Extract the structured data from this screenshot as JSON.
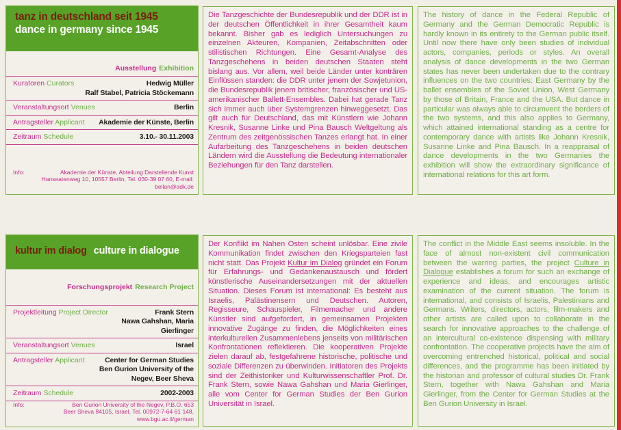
{
  "colors": {
    "background": "#f1eee6",
    "band_green": "#57a227",
    "text_green": "#6fae49",
    "text_magenta": "#c52b8c",
    "title_maroon": "#7b1d0c",
    "title_white": "#ffffff",
    "rule_magenta": "#c13b8e",
    "rule_green": "#7fb24a",
    "page_edge_red": "#d4332b"
  },
  "sections": [
    {
      "title_de": "tanz in deutschland seit 1945",
      "title_en": "dance in germany since 1945",
      "category_de": "Ausstellung",
      "category_en": "Exhibition",
      "meta": [
        {
          "label_de": "Kuratoren",
          "label_en": "Curators",
          "value_lines": [
            "Hedwig Müller",
            "Ralf Stabel, Patricia Stöckemann"
          ]
        },
        {
          "label_de": "Veranstaltungsort",
          "label_en": "Venues",
          "value_lines": [
            "Berlin"
          ]
        },
        {
          "label_de": "Antragsteller",
          "label_en": "Applicant",
          "value_lines": [
            "Akademie der Künste, Berlin"
          ]
        },
        {
          "label_de": "Zeitraum",
          "label_en": "Schedule",
          "value_lines": [
            "3.10.- 30.11.2003"
          ]
        }
      ],
      "info_label": "Info:",
      "info_line1": "Akademie der Künste, Abteilung Darstellende Kunst",
      "info_line2": "Hanseatenweg 10, 10557 Berlin, Tel. 030-39 07 60, E-mail: bellan@adk.de",
      "body_de_pre": "Die Tanzgeschichte der Bundesrepublik und der DDR ist in der deutschen Öffentlichkeit in ihrer Gesamtheit kaum bekannt. Bisher gab es lediglich Untersuchungen zu einzelnen Akteuren, Kompanien, Zeitabschnitten oder stilistischen Richtungen. Eine Gesamt-Analyse des Tanzgeschehens in beiden deutschen Staaten steht bislang aus. Vor allem, weil beide Länder unter konträren Einflüssen standen: die DDR unter jenem der Sowjetunion, die Bundesrepublik jenem britischer, französischer und US-amerikanischer Ballett-Ensembles. Dabei hat gerade Tanz sich immer auch über Systemgrenzen hinweggesetzt. Das gilt auch für Deutschland, das mit Künstlern wie Johann Kresnik, Susanne Linke und Pina Bausch Weltgeltung als Zentrum des zeitgenössischen Tanzes erlangt hat. In einer Aufarbeitung des Tanzgeschehens in beiden deutschen Ländern wird die Ausstellung die Bedeutung internationaler Beziehungen für den Tanz darstellen.",
      "body_en_pre": "The history of dance in the Federal Republic of Germany and the German Democratic Republic is hardly known in its entirety to the German public itself. Until now there have only been studies of individual actors, companies, periods or styles. An overall analysis of dance developments in the two German states has never been undertaken due to the contrary influences on the two countries: East Germany by the ballet ensembles of the Soviet Union, West Germany by those of Britain, France and the USA. But dance in particular was always able to circumvent the borders of the two systems, and this also applies to Germany, which attained international standing as a centre for contemporary dance with artists like Johann Kresnik, Susanne Linke and Pina Bausch. In a reappraisal of dance developments in the two Germanies the exhibition will show the extraordinary significance of international relations for this art form."
    },
    {
      "title_de": "kultur im dialog",
      "title_en": "culture in dialogue",
      "category_de": "Forschungsprojekt",
      "category_en": "Research Project",
      "meta": [
        {
          "label_de": "Projektleitung",
          "label_en": "Project Director",
          "value_lines": [
            "Frank Stern",
            "Nawa Gahshan, Maria Gierlinger"
          ]
        },
        {
          "label_de": "Veranstaltungsort",
          "label_en": "Venues",
          "value_lines": [
            "Israel"
          ]
        },
        {
          "label_de": "Antragsteller",
          "label_en": "Applicant",
          "value_lines": [
            "Center for German Studies",
            "Ben Gurion University of the Negev, Beer Sheva"
          ]
        },
        {
          "label_de": "Zeitraum",
          "label_en": "Schedule",
          "value_lines": [
            "2002-2003"
          ]
        }
      ],
      "info_label": "Info:",
      "info_line1": "Ben Gurion University of the Negev, P.B.O. 653",
      "info_line2": "Beer Sheva 84105, Israel, Tel. 00972-7-64 61 148, www.bgu.ac.il/german",
      "body_de_pre": "Der Konflikt im Nahen Osten scheint unlösbar. Eine zivile Kommunikation findet zwischen den Kriegsparteien fast nicht statt. Das Projekt ",
      "body_de_link": "Kultur im Dialog",
      "body_de_post": " gründet ein Forum für Erfahrungs- und Gedankenaustausch und fördert künstlerische Auseinandersetzungen mit der aktuellen Situation. Dieses Forum ist international: Es besteht aus Israelis, Palästinensern und Deutschen. Autoren, Regisseure, Schauspieler, Filmemacher und andere Künstler sind aufgefordert, in gemeinsamen Projekten innovative Zugänge zu finden, die Möglichkeiten eines interkulturellen Zusammenlebens jenseits von militärischen Konfrontationen reflektieren. Die kooperativen Projekte zielen darauf ab, festgefahrene historische, politische und soziale Differenzen zu überwinden. Initiatoren des Projekts sind der Zeithistoriker und Kulturwissenschaftler Prof. Dr. Frank Stern, sowie Nawa Gahshan und Maria Gierlinger, alle vom Center for German Studies der Ben Gurion Universität in Israel.",
      "body_en_pre": "The conflict in the Middle East seems insoluble. In the face of almost non-existent civil communication between the warring parties, the project ",
      "body_en_link": "Culture in Dialogue",
      "body_en_post": " establishes a forum for such an exchange of experience and ideas, and encourages artistic examination of the current situation. The forum is international, and consists of Israelis, Palestinians and Germans. Writers, directors, actors, film-makers and other artists are called upon to collaborate in the search for innovative approaches to the challenge of an intercultural co-existence dispensing with military confrontation. The cooperative projects have the aim of overcoming entrenched historical, political and social differences, and the programme has been initiated by the historian and professor of cultural studies Dr. Frank Stern, together with Nawa Gahshan and Maria Gierlinger, from the Center for German Studies at the Ben Gurion University in Israel."
    }
  ]
}
